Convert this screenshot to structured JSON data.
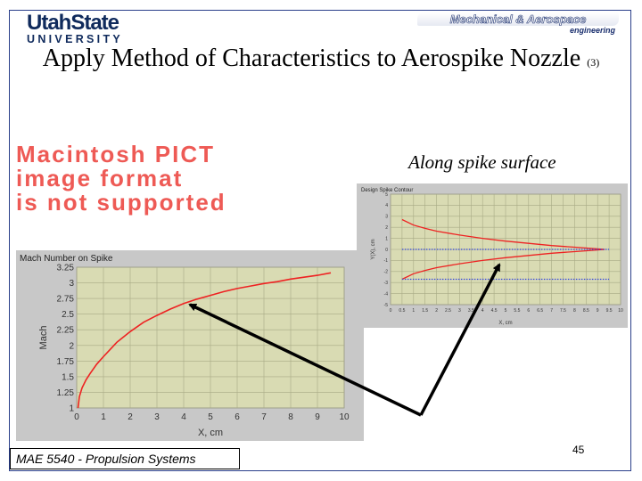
{
  "header": {
    "usu_logo": {
      "line1": "UtahState",
      "line2": "UNIVERSITY"
    },
    "dept_logo": {
      "line1": "Mechanical & Aerospace",
      "line2": "engineering"
    }
  },
  "title": {
    "main": "Apply Method of Characteristics to Aerospike Nozzle",
    "suffix": "(3)"
  },
  "placeholder": {
    "lines": [
      "Macintosh PICT",
      "image format",
      "is not supported"
    ],
    "color": "#ee5a55"
  },
  "annotation": {
    "text": "Along spike surface"
  },
  "chart_data": [
    {
      "type": "line",
      "title": "Mach Number on Spike",
      "xlabel": "X, cm",
      "ylabel": "Mach",
      "xlim": [
        0,
        10
      ],
      "ylim": [
        1,
        3.25
      ],
      "x_ticks": [
        "0",
        "1",
        "2",
        "3",
        "4",
        "5",
        "6",
        "7",
        "8",
        "9",
        "10"
      ],
      "y_ticks": [
        "1",
        "1.25",
        "1.5",
        "1.75",
        "2",
        "2.25",
        "2.5",
        "2.75",
        "3",
        "3.25"
      ],
      "grid": true,
      "series": [
        {
          "color": "#ee2222",
          "x": [
            0.05,
            0.1,
            0.2,
            0.35,
            0.5,
            0.75,
            1.0,
            1.5,
            2.0,
            2.5,
            3.0,
            3.5,
            4.0,
            4.5,
            5.0,
            5.5,
            6.0,
            6.5,
            7.0,
            7.5,
            8.0,
            8.5,
            9.0,
            9.5
          ],
          "y": [
            1.0,
            1.18,
            1.32,
            1.45,
            1.55,
            1.7,
            1.82,
            2.05,
            2.22,
            2.37,
            2.48,
            2.58,
            2.67,
            2.74,
            2.8,
            2.86,
            2.91,
            2.95,
            2.99,
            3.02,
            3.06,
            3.09,
            3.12,
            3.16
          ]
        }
      ]
    },
    {
      "type": "line",
      "title": "Design Spike Contour",
      "xlabel": "X, cm",
      "ylabel": "Y(X), cm",
      "xlim": [
        0,
        10
      ],
      "ylim": [
        -5,
        5
      ],
      "x_ticks": [
        "0",
        "0.5",
        "1",
        "1.5",
        "2",
        "2.5",
        "3",
        "3.5",
        "4",
        "4.5",
        "5",
        "5.5",
        "6",
        "6.5",
        "7",
        "7.5",
        "8",
        "8.5",
        "9",
        "9.5",
        "10"
      ],
      "y_ticks": [
        "-5",
        "-4",
        "-3",
        "-2",
        "-1",
        "0",
        "1",
        "2",
        "3",
        "4",
        "5"
      ],
      "grid": true,
      "series": [
        {
          "color": "#ee2222",
          "x": [
            0.5,
            1,
            1.5,
            2,
            3,
            4,
            5,
            6,
            7,
            8,
            9,
            9.3
          ],
          "y": [
            2.7,
            2.2,
            1.9,
            1.65,
            1.3,
            1.0,
            0.75,
            0.55,
            0.35,
            0.2,
            0.05,
            0.0
          ]
        },
        {
          "color": "#ee2222",
          "x": [
            0.5,
            1,
            1.5,
            2,
            3,
            4,
            5,
            6,
            7,
            8,
            9,
            9.3
          ],
          "y": [
            -2.7,
            -2.2,
            -1.9,
            -1.65,
            -1.3,
            -1.0,
            -0.75,
            -0.55,
            -0.35,
            -0.2,
            -0.05,
            0.0
          ]
        },
        {
          "color": "#3344dd",
          "x": [
            0.5,
            9.5
          ],
          "y": [
            0,
            0
          ]
        },
        {
          "color": "#3344dd",
          "x": [
            0.5,
            9.5
          ],
          "y": [
            -2.7,
            -2.7
          ]
        }
      ]
    }
  ],
  "footer": {
    "course": "MAE 5540 - Propulsion Systems",
    "page": "45"
  }
}
